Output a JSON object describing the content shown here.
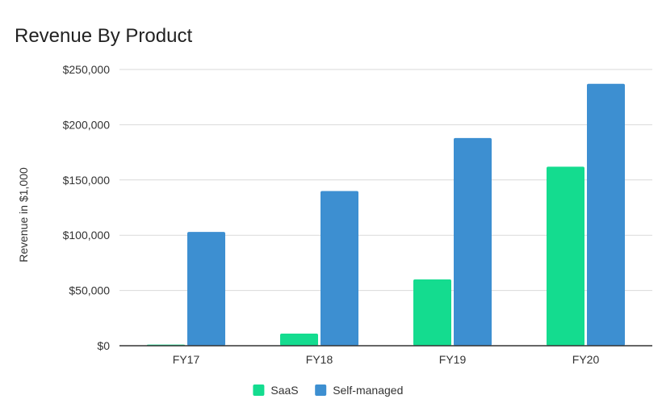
{
  "chart_data": {
    "type": "bar",
    "title": "Revenue By Product",
    "xlabel": "",
    "ylabel": "Revenue in $1,000",
    "categories": [
      "FY17",
      "FY18",
      "FY19",
      "FY20"
    ],
    "series": [
      {
        "name": "SaaS",
        "color": "#14dc8f",
        "values": [
          1000,
          11000,
          60000,
          162000
        ]
      },
      {
        "name": "Self-managed",
        "color": "#3d8fd1",
        "values": [
          103000,
          140000,
          188000,
          237000
        ]
      }
    ],
    "ylim": [
      0,
      250000
    ],
    "yticks": [
      0,
      50000,
      100000,
      150000,
      200000,
      250000
    ],
    "ytick_labels": [
      "$0",
      "$50,000",
      "$100,000",
      "$150,000",
      "$200,000",
      "$250,000"
    ],
    "grid": true,
    "legend": "bottom-center"
  }
}
